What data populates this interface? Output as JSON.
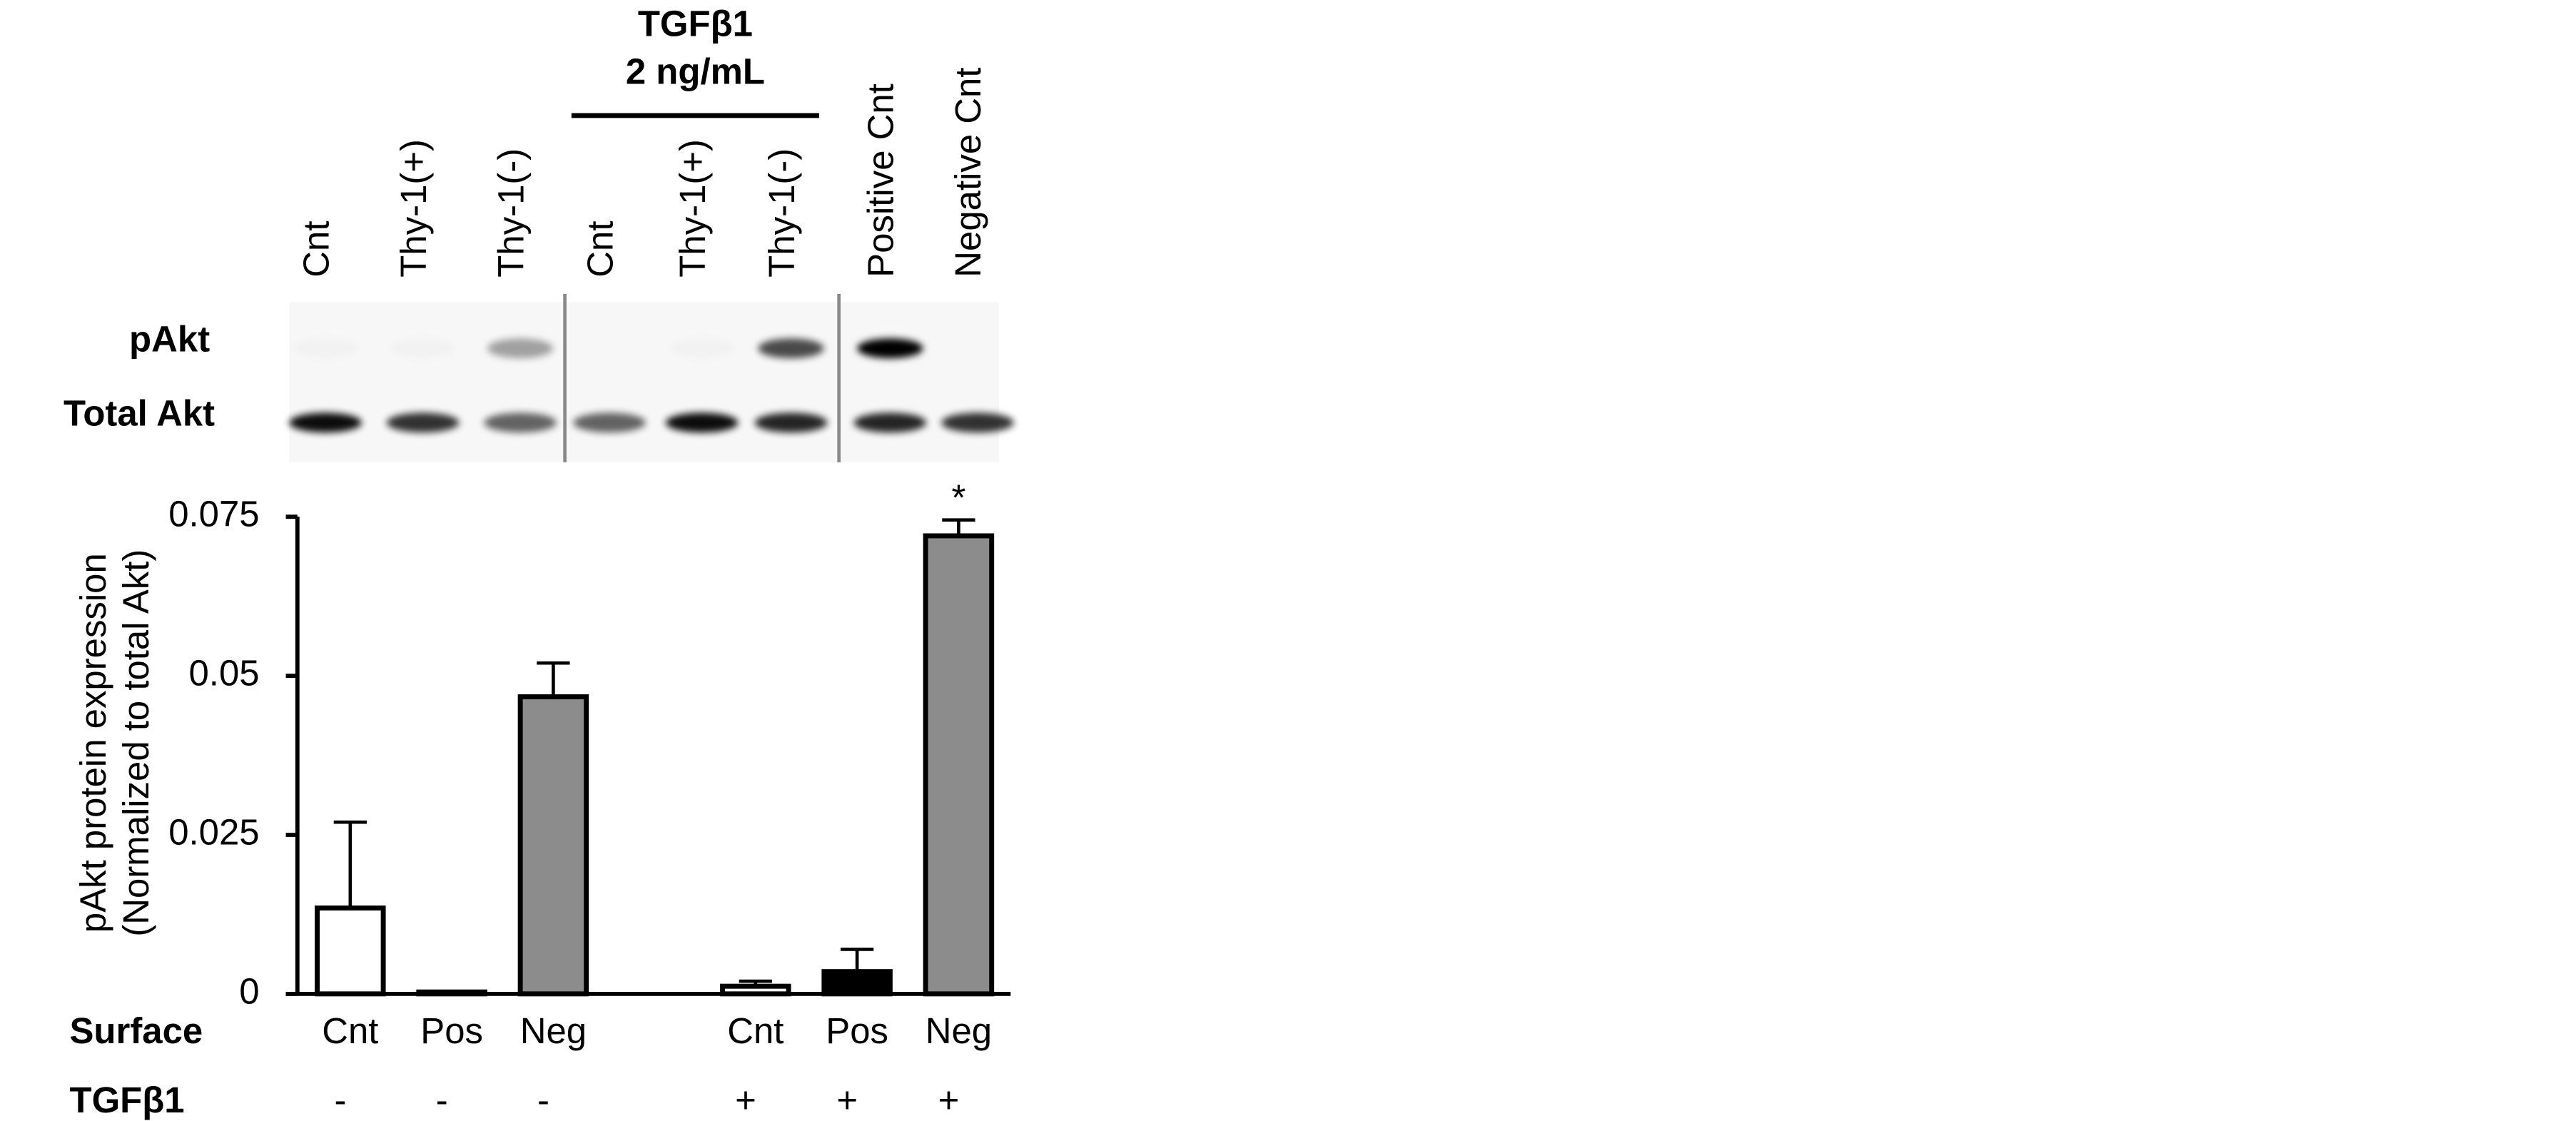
{
  "blot": {
    "header": [
      "TGFβ1",
      "2 ng/mL"
    ],
    "lanes": [
      "Cnt",
      "Thy-1(+)",
      "Thy-1(-)",
      "Cnt",
      "Thy-1(+)",
      "Thy-1(-)",
      "Positive Cnt",
      "Negative Cnt"
    ],
    "rows": [
      "pAkt",
      "Total Akt"
    ]
  },
  "chart_data": {
    "type": "bar",
    "y_label": [
      "pAkt protein expression",
      "(Normalized to total Akt)"
    ],
    "row_labels": [
      "Surface",
      "TGFβ1"
    ],
    "categories": [
      "Cnt",
      "Pos",
      "Neg",
      "Cnt",
      "Pos",
      "Neg"
    ],
    "treatment": [
      "-",
      "-",
      "-",
      "+",
      "+",
      "+"
    ],
    "values": [
      0.0135,
      0.0003,
      0.0467,
      0.0012,
      0.0035,
      0.072
    ],
    "errors": [
      0.0135,
      0.0001,
      0.0053,
      0.0008,
      0.0035,
      0.0025
    ],
    "colors": [
      "#ffffff",
      "#ffffff",
      "#8c8c8c",
      "#ffffff",
      "#000000",
      "#8c8c8c"
    ],
    "annotations": [
      null,
      null,
      null,
      null,
      null,
      "*"
    ],
    "ylim": [
      0,
      0.075
    ],
    "yticks": [
      0,
      0.025,
      0.05,
      0.075
    ]
  }
}
